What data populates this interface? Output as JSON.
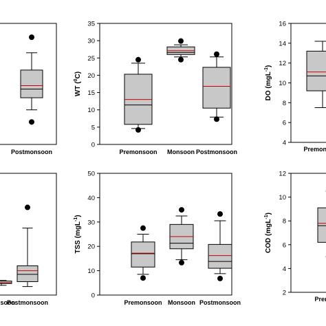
{
  "chart_data": [
    {
      "type": "box",
      "panel": "top-left (partially visible)",
      "ylabel": "",
      "categories": [
        "Postmonsoon"
      ],
      "boxes": [
        {
          "category": "Postmonsoon",
          "whisker_low": 0.3,
          "q1": 0.37,
          "median": 0.42,
          "mean": 0.44,
          "q3": 0.53,
          "whisker_high": 0.63,
          "outliers": [
            0.23,
            0.72
          ]
        }
      ],
      "grid": false
    },
    {
      "type": "box",
      "panel": "top-middle",
      "ylabel": "WT (0C)",
      "ylabel_parts": {
        "base": "WT (",
        "sup": "0",
        "unit": "C)"
      },
      "ylim": [
        0,
        35
      ],
      "yticks": [
        "0",
        "5",
        "10",
        "15",
        "20",
        "25",
        "30",
        "35"
      ],
      "categories": [
        "Premonsoon",
        "Monsoon",
        "Postmonsoon"
      ],
      "boxes": [
        {
          "category": "Premonsoon",
          "whisker_low": 4.6,
          "q1": 5.8,
          "median": 11.4,
          "mean": 13.0,
          "q3": 20.3,
          "whisker_high": 23.5,
          "outliers": [
            4.2,
            24.5
          ]
        },
        {
          "category": "Monsoon",
          "whisker_low": 25.3,
          "q1": 26.0,
          "median": 26.6,
          "mean": 27.1,
          "q3": 28.2,
          "whisker_high": 28.8,
          "outliers": [
            24.5,
            29.9
          ]
        },
        {
          "category": "Postmonsoon",
          "whisker_low": 7.9,
          "q1": 10.5,
          "median": 16.8,
          "mean": 16.8,
          "q3": 22.3,
          "whisker_high": 25.3,
          "outliers": [
            7.3,
            26.1
          ]
        }
      ],
      "grid": false
    },
    {
      "type": "box",
      "panel": "top-right (partially visible)",
      "ylabel": "DO (mgL-1)",
      "ylabel_parts": {
        "base": "DO (mgL",
        "sup": "-1",
        "unit": ")"
      },
      "ylim": [
        4,
        16
      ],
      "yticks": [
        "4",
        "6",
        "8",
        "10",
        "12",
        "14",
        "16"
      ],
      "categories": [
        "Premonsoon"
      ],
      "boxes": [
        {
          "category": "Premonsoon",
          "whisker_low": 7.5,
          "q1": 9.2,
          "median": 10.7,
          "mean": 11.1,
          "q3": 13.2,
          "whisker_high": 14.2,
          "outliers": []
        }
      ],
      "grid": false
    },
    {
      "type": "box",
      "panel": "bottom-left (partially visible)",
      "ylabel": "",
      "categories": [
        "Monsoon",
        "Postmonsoon"
      ],
      "boxes": [
        {
          "category": "Monsoon",
          "whisker_low": 0.08,
          "q1": 0.095,
          "median": 0.1,
          "mean": 0.1,
          "q3": 0.115,
          "whisker_high": 0.12,
          "outliers": []
        },
        {
          "category": "Postmonsoon",
          "whisker_low": 0.07,
          "q1": 0.11,
          "median": 0.17,
          "mean": 0.2,
          "q3": 0.24,
          "whisker_high": 0.55,
          "outliers": [
            0.72
          ]
        }
      ],
      "grid": false
    },
    {
      "type": "box",
      "panel": "bottom-middle",
      "ylabel": "TSS (mgL-1)",
      "ylabel_parts": {
        "base": "TSS (mgL",
        "sup": "-1",
        "unit": ")"
      },
      "ylim": [
        0,
        50
      ],
      "yticks": [
        "0",
        "10",
        "20",
        "30",
        "40",
        "50"
      ],
      "categories": [
        "Premonsoon",
        "Monsoon",
        "Postmonsoon"
      ],
      "boxes": [
        {
          "category": "Premonsoon",
          "whisker_low": 8.5,
          "q1": 11.5,
          "median": 17.0,
          "mean": 17.2,
          "q3": 21.8,
          "whisker_high": 25.0,
          "outliers": [
            7.0,
            27.5
          ]
        },
        {
          "category": "Monsoon",
          "whisker_low": 14.5,
          "q1": 19.0,
          "median": 21.3,
          "mean": 24.0,
          "q3": 29.0,
          "whisker_high": 32.5,
          "outliers": [
            13.3,
            35.0
          ]
        },
        {
          "category": "Postmonsoon",
          "whisker_low": 8.8,
          "q1": 11.0,
          "median": 13.8,
          "mean": 16.2,
          "q3": 20.8,
          "whisker_high": 30.5,
          "outliers": [
            6.8,
            33.3
          ]
        }
      ],
      "grid": false
    },
    {
      "type": "box",
      "panel": "bottom-right (partially visible)",
      "ylabel": "COD (mgL-1)",
      "ylabel_parts": {
        "base": "COD (mgL",
        "sup": "-1",
        "unit": ")"
      },
      "ylim": [
        2,
        12
      ],
      "yticks": [
        "2",
        "4",
        "6",
        "8",
        "10",
        "12"
      ],
      "categories": [
        "Premonsoon"
      ],
      "boxes": [
        {
          "category": "Premonsoon",
          "whisker_low": 5.0,
          "q1": 6.2,
          "median": 7.6,
          "mean": 7.8,
          "q3": 9.1,
          "whisker_high": 10.5,
          "outliers": []
        }
      ],
      "grid": false
    }
  ],
  "colors": {
    "box_fill": "#c8c8c8",
    "mean_line": "#cc0000",
    "median_line": "#000000",
    "frame": "#000000"
  }
}
